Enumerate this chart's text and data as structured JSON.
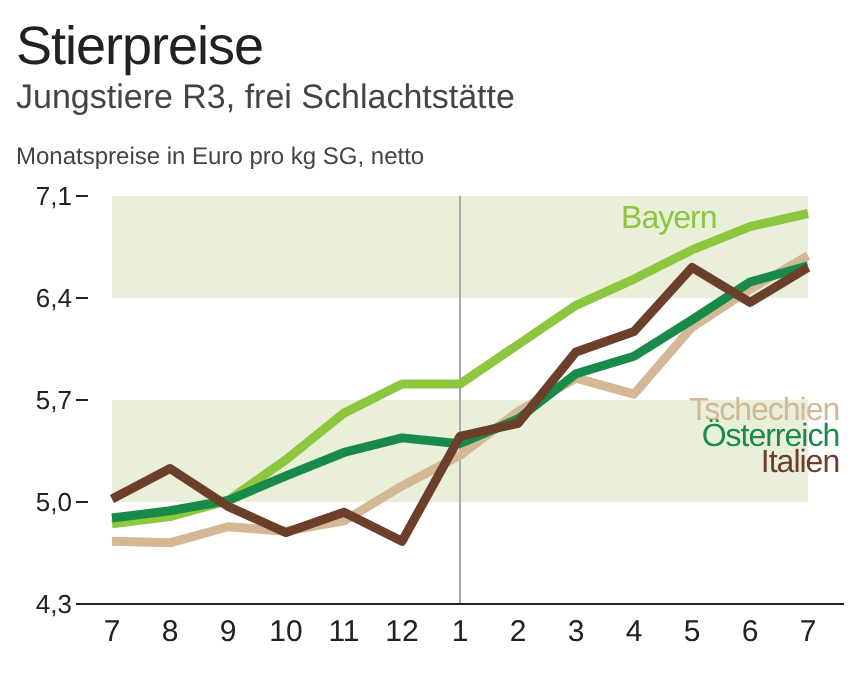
{
  "chart_data": {
    "type": "line",
    "title": "Stierpreise",
    "subtitle": "Jungstiere R3, frei Schlachtstätte",
    "ylabel": "Monatspreise in Euro pro kg SG, netto",
    "categories": [
      "7",
      "8",
      "9",
      "10",
      "11",
      "12",
      "1",
      "2",
      "3",
      "4",
      "5",
      "6",
      "7"
    ],
    "series": [
      {
        "name": "Bayern",
        "color": "#8dc63f",
        "values": [
          4.85,
          4.9,
          5.01,
          5.29,
          5.61,
          5.81,
          5.81,
          6.08,
          6.35,
          6.53,
          6.73,
          6.89,
          6.98
        ]
      },
      {
        "name": "Tschechien",
        "color": "#d4b896",
        "values": [
          4.73,
          4.72,
          4.83,
          4.8,
          4.87,
          5.11,
          5.32,
          5.62,
          5.85,
          5.74,
          6.2,
          6.46,
          6.69
        ]
      },
      {
        "name": "Österreich",
        "color": "#1a8a4a",
        "values": [
          4.89,
          4.94,
          5.01,
          5.18,
          5.34,
          5.44,
          5.4,
          5.57,
          5.88,
          6.0,
          6.25,
          6.51,
          6.62
        ]
      },
      {
        "name": "Italien",
        "color": "#6b3f2a",
        "values": [
          5.02,
          5.23,
          4.97,
          4.79,
          4.93,
          4.73,
          5.45,
          5.54,
          6.03,
          6.17,
          6.61,
          6.37,
          6.61
        ]
      }
    ],
    "ylim": [
      4.3,
      7.1
    ],
    "yticks": [
      {
        "value": 4.3,
        "label": "4,3"
      },
      {
        "value": 5.0,
        "label": "5,0"
      },
      {
        "value": 5.7,
        "label": "5,7"
      },
      {
        "value": 6.4,
        "label": "6,4"
      },
      {
        "value": 7.1,
        "label": "7,1"
      }
    ],
    "bands": [
      {
        "axis": "y",
        "from": 5.0,
        "to": 5.7,
        "color": "#e9efd9"
      },
      {
        "axis": "y",
        "from": 6.4,
        "to": 7.1,
        "color": "#e9efd9"
      }
    ],
    "ref_lines": [
      {
        "axis": "x",
        "value": "1",
        "color": "#aaaaaa"
      }
    ],
    "grid": false,
    "marker": "none",
    "line_style": "solid"
  }
}
